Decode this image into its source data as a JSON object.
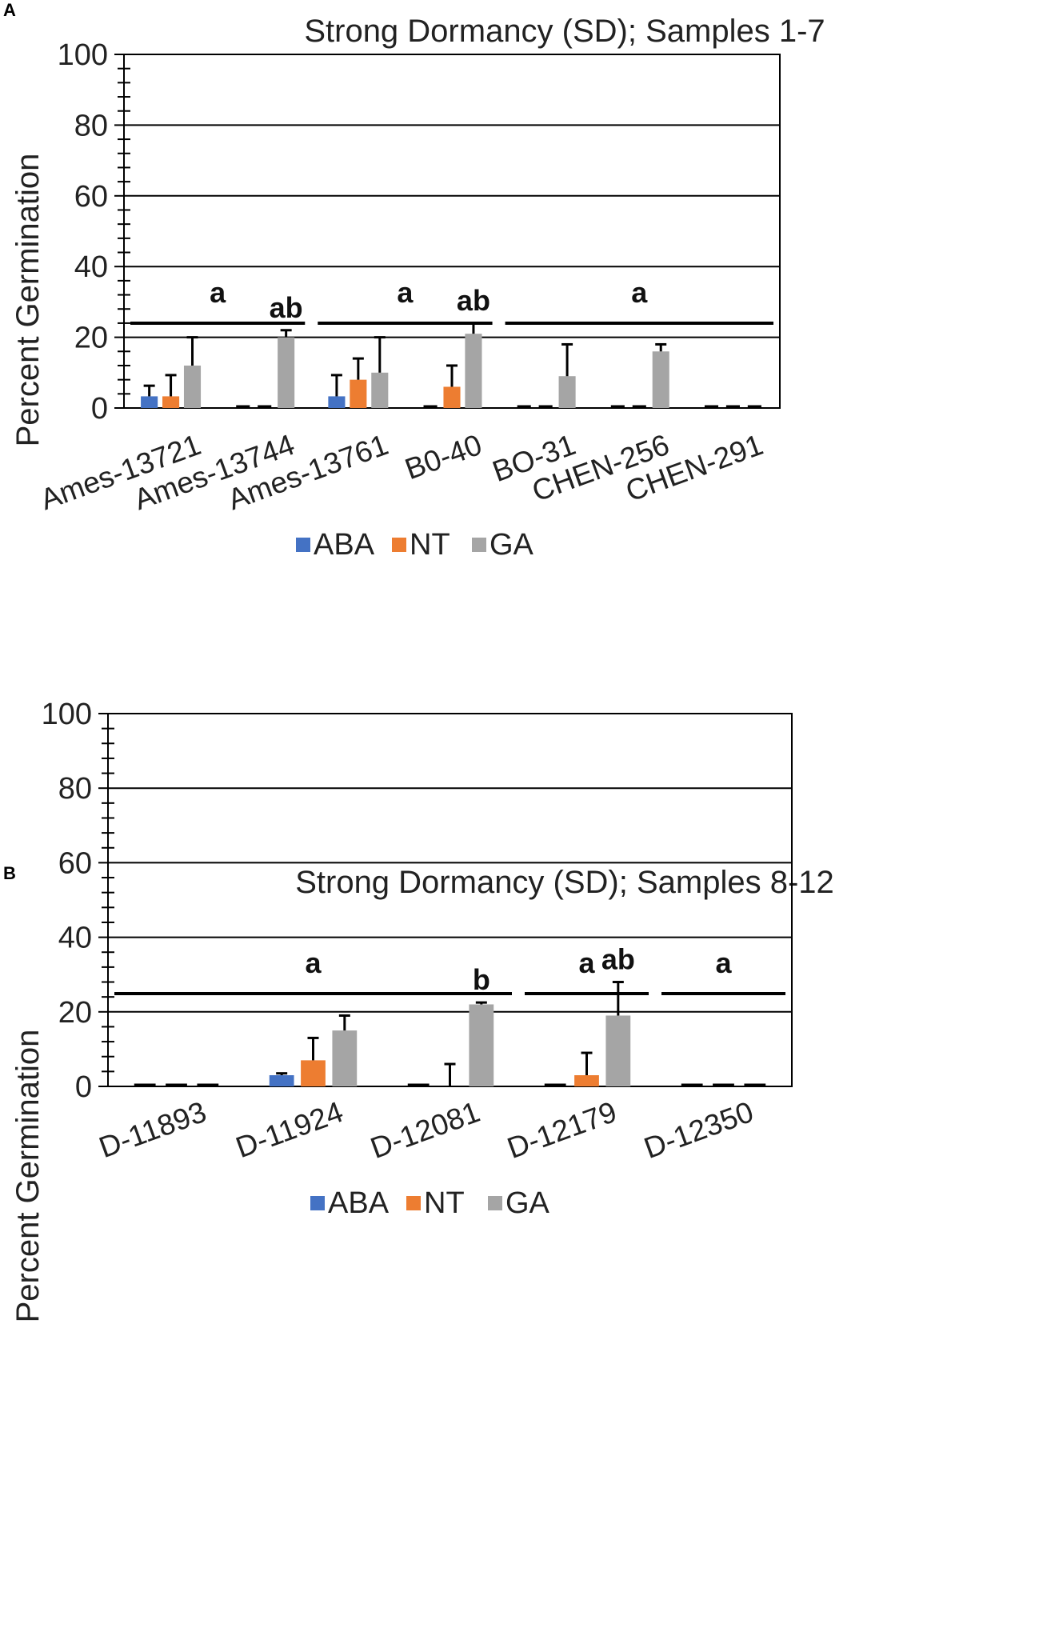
{
  "legend_colors": {
    "ABA": "#4472C4",
    "NT": "#ED7D31",
    "GA": "#A5A5A5"
  },
  "chart_data": [
    {
      "type": "bar",
      "panel": "A",
      "title": "Strong Dormancy (SD); Samples 1-7",
      "ylabel": "Percent Germination",
      "xlabel": "",
      "ylim": [
        0,
        100
      ],
      "yticks": [
        "0",
        "20",
        "40",
        "60",
        "80",
        "100"
      ],
      "grid": true,
      "legend_position": "bottom",
      "categories": [
        "Ames-13721",
        "Ames-13744",
        "Ames-13761",
        "B0-40",
        "BO-31",
        "CHEN-256",
        "CHEN-291"
      ],
      "series": [
        {
          "name": "ABA",
          "values": [
            3.3,
            0,
            3.3,
            0,
            0,
            0,
            0
          ],
          "errors": [
            3,
            0,
            6,
            0,
            0,
            0,
            0
          ]
        },
        {
          "name": "NT",
          "values": [
            3.3,
            0,
            8,
            6,
            0,
            0,
            0
          ],
          "errors": [
            6,
            0,
            6,
            6,
            0,
            0,
            0
          ]
        },
        {
          "name": "GA",
          "values": [
            12,
            20,
            10,
            21,
            9,
            16,
            0
          ],
          "errors": [
            8,
            2,
            10,
            3,
            9,
            2,
            0
          ]
        }
      ],
      "annotations": [
        {
          "text": "a",
          "from_category": 0,
          "to_category": 1,
          "bar": true
        },
        {
          "text": "ab",
          "category": 1
        },
        {
          "text": "a",
          "from_category": 2,
          "to_category": 3,
          "bar": true
        },
        {
          "text": "ab",
          "category": 3
        },
        {
          "text": "a",
          "from_category": 4,
          "to_category": 6,
          "bar": true
        }
      ]
    },
    {
      "type": "bar",
      "panel": "B",
      "title": "Strong Dormancy (SD); Samples 8-12",
      "ylabel": "Percent Germination",
      "xlabel": "",
      "ylim": [
        0,
        100
      ],
      "yticks": [
        "0",
        "20",
        "40",
        "60",
        "80",
        "100"
      ],
      "grid": true,
      "legend_position": "bottom",
      "categories": [
        "D-11893",
        "D-11924",
        "D-12081",
        "D-12179",
        "D-12350"
      ],
      "series": [
        {
          "name": "ABA",
          "values": [
            0,
            3,
            0,
            0,
            0
          ],
          "errors": [
            0,
            0.5,
            0,
            0,
            0
          ]
        },
        {
          "name": "NT",
          "values": [
            0,
            7,
            0,
            3,
            0
          ],
          "errors": [
            0,
            6,
            6,
            6,
            0
          ]
        },
        {
          "name": "GA",
          "values": [
            0,
            15,
            22,
            19,
            0
          ],
          "errors": [
            0,
            4,
            0.5,
            9,
            0
          ]
        }
      ],
      "annotations": [
        {
          "text": "a",
          "from_category": 0,
          "to_category": 2,
          "bar": true
        },
        {
          "text": "b",
          "category": 2
        },
        {
          "text": "a",
          "from_category": 3,
          "to_category": 3,
          "bar": true
        },
        {
          "text": "ab",
          "category": 3
        },
        {
          "text": "a",
          "from_category": 4,
          "to_category": 4,
          "bar": true
        }
      ]
    }
  ]
}
